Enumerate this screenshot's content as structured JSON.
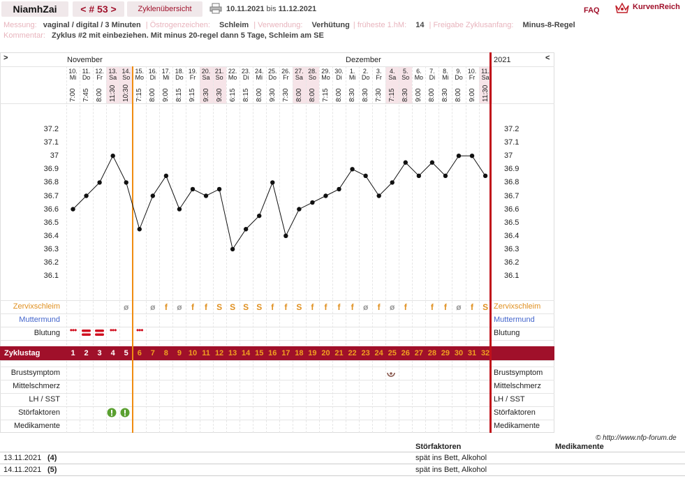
{
  "header": {
    "username": "NiamhZai",
    "cycle_nav": "< # 53 >",
    "overview_tab": "Zyklenübersicht",
    "date_from": "10.11.2021",
    "date_sep": "bis",
    "date_to": "11.12.2021",
    "faq": "FAQ",
    "brand": "KurvenReich"
  },
  "info": {
    "messung_label": "Messung:",
    "messung_value": "vaginal / digital / 3 Minuten",
    "oestrogen_label": "Östrogenzeichen:",
    "oestrogen_value": "Schleim",
    "verwendung_label": "Verwendung:",
    "verwendung_value": "Verhütung",
    "hm_label": "früheste 1.hM:",
    "hm_value": "14",
    "freigabe_label": "Freigabe Zyklusanfang:",
    "freigabe_value": "Minus-8-Regel",
    "kommentar_label": "Kommentar:",
    "kommentar_value": "Zyklus #2  mit einbeziehen. Mit minus 20-regel dann 5 Tage,  Schleim am SE"
  },
  "chart": {
    "nav_left": ">",
    "nav_right": "<",
    "month1": "November",
    "month2": "Dezember",
    "year": "2021",
    "y_ticks": [
      "37.2",
      "37.1",
      "37",
      "36.9",
      "36.8",
      "36.7",
      "36.6",
      "36.5",
      "36.4",
      "36.3",
      "36.2",
      "36.1"
    ],
    "days": [
      {
        "d": "10.",
        "w": "Mi",
        "t": "7:00",
        "we": false
      },
      {
        "d": "11.",
        "w": "Do",
        "t": "7:45",
        "we": false
      },
      {
        "d": "12.",
        "w": "Fr",
        "t": "8:00",
        "we": false
      },
      {
        "d": "13.",
        "w": "Sa",
        "t": "11:30",
        "we": true
      },
      {
        "d": "14.",
        "w": "So",
        "t": "10:30",
        "we": true
      },
      {
        "d": "15.",
        "w": "Mo",
        "t": "7:15",
        "we": false
      },
      {
        "d": "16.",
        "w": "Di",
        "t": "8:00",
        "we": false
      },
      {
        "d": "17.",
        "w": "Mi",
        "t": "9:00",
        "we": false
      },
      {
        "d": "18.",
        "w": "Do",
        "t": "8:15",
        "we": false
      },
      {
        "d": "19.",
        "w": "Fr",
        "t": "9:15",
        "we": false
      },
      {
        "d": "20.",
        "w": "Sa",
        "t": "9:30",
        "we": true
      },
      {
        "d": "21.",
        "w": "So",
        "t": "9:30",
        "we": true
      },
      {
        "d": "22.",
        "w": "Mo",
        "t": "6:15",
        "we": false
      },
      {
        "d": "23.",
        "w": "Di",
        "t": "8:15",
        "we": false
      },
      {
        "d": "24.",
        "w": "Mi",
        "t": "8:00",
        "we": false
      },
      {
        "d": "25.",
        "w": "Do",
        "t": "9:30",
        "we": false
      },
      {
        "d": "26.",
        "w": "Fr",
        "t": "7:30",
        "we": false
      },
      {
        "d": "27.",
        "w": "Sa",
        "t": "8:00",
        "we": true
      },
      {
        "d": "28.",
        "w": "So",
        "t": "8:00",
        "we": true
      },
      {
        "d": "29.",
        "w": "Mo",
        "t": "7:15",
        "we": false
      },
      {
        "d": "30.",
        "w": "Di",
        "t": "8:00",
        "we": false
      },
      {
        "d": "1.",
        "w": "Mi",
        "t": "8:30",
        "we": false
      },
      {
        "d": "2.",
        "w": "Do",
        "t": "8:30",
        "we": false
      },
      {
        "d": "3.",
        "w": "Fr",
        "t": "7:30",
        "we": false
      },
      {
        "d": "4.",
        "w": "Sa",
        "t": "7:15",
        "we": true
      },
      {
        "d": "5.",
        "w": "So",
        "t": "8:30",
        "we": true
      },
      {
        "d": "6.",
        "w": "Mo",
        "t": "9:00",
        "we": false
      },
      {
        "d": "7.",
        "w": "Di",
        "t": "8:00",
        "we": false
      },
      {
        "d": "8.",
        "w": "Mi",
        "t": "8:30",
        "we": false
      },
      {
        "d": "9.",
        "w": "Do",
        "t": "8:00",
        "we": false
      },
      {
        "d": "10.",
        "w": "Fr",
        "t": "9:00",
        "we": false
      },
      {
        "d": "11.",
        "w": "Sa",
        "t": "11:30",
        "we": true
      }
    ],
    "row_labels": {
      "zervix": "Zervixschleim",
      "muttermund": "Muttermund",
      "blutung": "Blutung",
      "zyklustag": "Zyklustag",
      "brust": "Brustsymptom",
      "mittel": "Mittelschmerz",
      "lh": "LH / SST",
      "stoer": "Störfaktoren",
      "medi": "Medikamente"
    },
    "zervix_marks": [
      "",
      "",
      "",
      "",
      "ø",
      "",
      "ø",
      "f",
      "ø",
      "f",
      "f",
      "S",
      "S",
      "S",
      "S",
      "f",
      "f",
      "S",
      "f",
      "f",
      "f",
      "f",
      "ø",
      "f",
      "ø",
      "f",
      "",
      "f",
      "f",
      "ø",
      "f",
      "S"
    ],
    "cycle_days": [
      1,
      2,
      3,
      4,
      5,
      6,
      7,
      8,
      9,
      10,
      11,
      12,
      13,
      14,
      15,
      16,
      17,
      18,
      19,
      20,
      21,
      22,
      23,
      24,
      25,
      26,
      27,
      28,
      29,
      30,
      31,
      32
    ],
    "blutung": [
      "dots",
      "heavy",
      "heavy",
      "dots",
      "",
      "dots",
      "",
      "",
      "",
      "",
      "",
      "",
      "",
      "",
      "",
      "",
      "",
      "",
      "",
      "",
      "",
      "",
      "",
      "",
      "",
      "",
      "",
      "",
      "",
      "",
      "",
      ""
    ],
    "colors": {
      "accent": "#a0102a",
      "coverline": "#f08c10",
      "cycle_bar": "#a0102a",
      "cycle_num_post": "#f0a020"
    }
  },
  "chart_data": {
    "type": "line",
    "x": [
      "10.11.",
      "11.11.",
      "12.11.",
      "13.11.",
      "14.11.",
      "15.11.",
      "16.11.",
      "17.11.",
      "18.11.",
      "19.11.",
      "20.11.",
      "21.11.",
      "22.11.",
      "23.11.",
      "24.11.",
      "25.11.",
      "26.11.",
      "27.11.",
      "28.11.",
      "29.11.",
      "30.11.",
      "1.12.",
      "2.12.",
      "3.12.",
      "4.12.",
      "5.12.",
      "6.12.",
      "7.12.",
      "8.12.",
      "9.12.",
      "10.12.",
      "11.12."
    ],
    "series": [
      {
        "values": [
          36.6,
          36.7,
          36.8,
          37.0,
          36.8,
          36.45,
          36.7,
          36.85,
          36.6,
          36.75,
          36.7,
          36.75,
          36.3,
          36.45,
          36.55,
          36.8,
          36.4,
          36.6,
          36.65,
          36.7,
          36.75,
          36.9,
          36.85,
          36.7,
          36.8,
          36.95,
          36.85,
          36.95,
          36.85,
          37.0,
          37.0,
          36.85
        ]
      }
    ],
    "ylim": [
      36.0,
      37.3
    ],
    "grid": true
  },
  "footer": {
    "copyright": "© http://www.nfp-forum.de",
    "col_stoer": "Störfaktoren",
    "col_medi": "Medikamente",
    "rows": [
      {
        "date": "13.11.2021",
        "num": "(4)",
        "stoer": "spät  ins Bett, Alkohol"
      },
      {
        "date": "14.11.2021",
        "num": "(5)",
        "stoer": "spät ins Bett, Alkohol"
      }
    ]
  }
}
